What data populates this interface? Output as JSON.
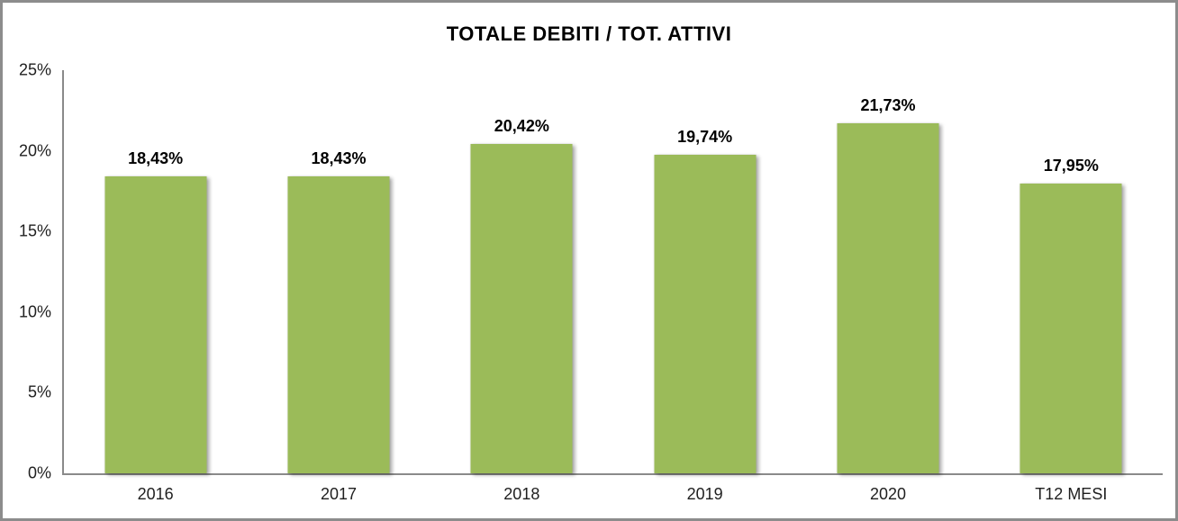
{
  "window": {
    "border_color": "#8C8C8C",
    "background_color": "#FFFFFF"
  },
  "chart_data": {
    "type": "bar",
    "title": "TOTALE DEBITI / TOT. ATTIVI",
    "categories": [
      "2016",
      "2017",
      "2018",
      "2019",
      "2020",
      "T12 MESI"
    ],
    "values": [
      18.43,
      18.43,
      20.42,
      19.74,
      21.73,
      17.95
    ],
    "value_labels": [
      "18,43%",
      "18,43%",
      "20,42%",
      "19,74%",
      "21,73%",
      "17,95%"
    ],
    "ylabel": "",
    "xlabel": "",
    "ylim": [
      0,
      25
    ],
    "ytick_step": 5,
    "ytick_labels": [
      "0%",
      "5%",
      "10%",
      "15%",
      "20%",
      "25%"
    ],
    "grid": false,
    "legend": "none",
    "bar_color": "#9BBB59",
    "axis_color": "#8A8A8A",
    "title_color": "#000000",
    "data_label_color": "#000000",
    "tick_label_color": "#1F1F1F"
  }
}
